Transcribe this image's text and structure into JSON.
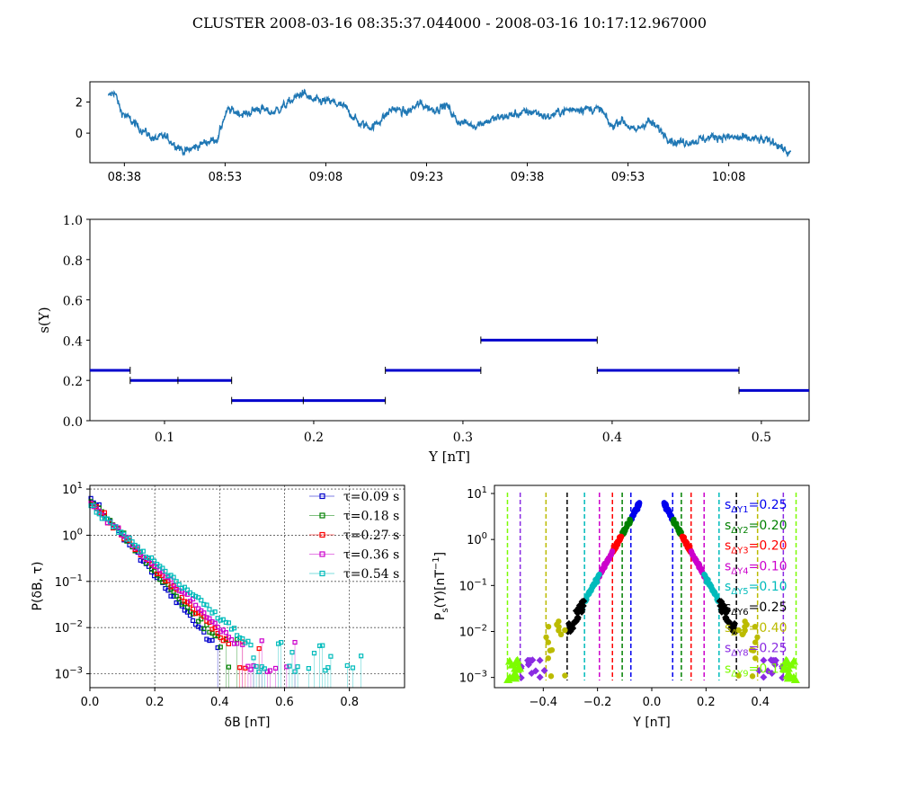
{
  "title": "CLUSTER  2008-03-16 08:35:37.044000 - 2008-03-16 10:17:12.967000",
  "chart_data": [
    {
      "type": "line",
      "panel": "timeseries",
      "x_ticks": [
        "08:38",
        "08:53",
        "09:08",
        "09:23",
        "09:38",
        "09:53",
        "10:08"
      ],
      "y_ticks": [
        "2",
        "0"
      ],
      "ylim": [
        -1.9,
        3.3
      ],
      "color": "#1f77b4",
      "keypoints": [
        {
          "t": "08:35:37",
          "v": 2.3
        },
        {
          "t": "08:36:30",
          "v": 2.7
        },
        {
          "t": "08:37:30",
          "v": 1.4
        },
        {
          "t": "08:39:30",
          "v": 0.6
        },
        {
          "t": "08:41:00",
          "v": 0.1
        },
        {
          "t": "08:42:30",
          "v": -0.4
        },
        {
          "t": "08:44:00",
          "v": -0.2
        },
        {
          "t": "08:45:30",
          "v": -0.7
        },
        {
          "t": "08:47:00",
          "v": -1.2
        },
        {
          "t": "08:48:30",
          "v": -0.9
        },
        {
          "t": "08:50:00",
          "v": -0.6
        },
        {
          "t": "08:52:00",
          "v": -0.3
        },
        {
          "t": "08:52:40",
          "v": 0.8
        },
        {
          "t": "08:53:30",
          "v": 1.5
        },
        {
          "t": "08:56:00",
          "v": 1.2
        },
        {
          "t": "08:58:00",
          "v": 1.6
        },
        {
          "t": "09:00:00",
          "v": 1.3
        },
        {
          "t": "09:02:00",
          "v": 1.8
        },
        {
          "t": "09:04:30",
          "v": 2.6
        },
        {
          "t": "09:06:00",
          "v": 2.1
        },
        {
          "t": "09:09:00",
          "v": 2.0
        },
        {
          "t": "09:11:00",
          "v": 1.6
        },
        {
          "t": "09:13:00",
          "v": 0.6
        },
        {
          "t": "09:15:00",
          "v": 0.4
        },
        {
          "t": "09:16:30",
          "v": 1.0
        },
        {
          "t": "09:18:00",
          "v": 1.6
        },
        {
          "t": "09:20:00",
          "v": 1.3
        },
        {
          "t": "09:22:00",
          "v": 1.9
        },
        {
          "t": "09:24:00",
          "v": 1.5
        },
        {
          "t": "09:26:00",
          "v": 1.8
        },
        {
          "t": "09:27:30",
          "v": 0.8
        },
        {
          "t": "09:30:00",
          "v": 0.5
        },
        {
          "t": "09:33:00",
          "v": 0.9
        },
        {
          "t": "09:36:00",
          "v": 1.2
        },
        {
          "t": "09:39:00",
          "v": 1.4
        },
        {
          "t": "09:41:00",
          "v": 1.0
        },
        {
          "t": "09:43:00",
          "v": 1.4
        },
        {
          "t": "09:46:00",
          "v": 1.6
        },
        {
          "t": "09:49:00",
          "v": 1.5
        },
        {
          "t": "09:50:30",
          "v": 0.4
        },
        {
          "t": "09:52:00",
          "v": 0.9
        },
        {
          "t": "09:54:00",
          "v": 0.1
        },
        {
          "t": "09:56:00",
          "v": 0.8
        },
        {
          "t": "09:58:00",
          "v": 0.1
        },
        {
          "t": "10:00:00",
          "v": -0.6
        },
        {
          "t": "10:03:00",
          "v": -0.5
        },
        {
          "t": "10:06:00",
          "v": -0.2
        },
        {
          "t": "10:09:00",
          "v": -0.3
        },
        {
          "t": "10:12:00",
          "v": -0.4
        },
        {
          "t": "10:15:00",
          "v": -0.6
        },
        {
          "t": "10:17:12",
          "v": -1.4
        }
      ]
    },
    {
      "type": "step",
      "panel": "scaling",
      "ylabel": "s(Y)",
      "xlabel": "Y [nT]",
      "xlim": [
        0.05,
        0.532
      ],
      "ylim": [
        0.0,
        1.0
      ],
      "x_ticks": [
        "0.1",
        "0.2",
        "0.3",
        "0.4",
        "0.5"
      ],
      "y_ticks": [
        "0.0",
        "0.2",
        "0.4",
        "0.6",
        "0.8",
        "1.0"
      ],
      "color": "#0000cc",
      "segments": [
        {
          "x0": 0.05,
          "x1": 0.077,
          "y": 0.25,
          "ticks": [
            0.077
          ]
        },
        {
          "x0": 0.077,
          "x1": 0.145,
          "y": 0.2,
          "ticks": [
            0.077,
            0.109,
            0.145
          ]
        },
        {
          "x0": 0.145,
          "x1": 0.248,
          "y": 0.1,
          "ticks": [
            0.145,
            0.193,
            0.248
          ]
        },
        {
          "x0": 0.248,
          "x1": 0.312,
          "y": 0.25,
          "ticks": [
            0.248,
            0.312
          ]
        },
        {
          "x0": 0.312,
          "x1": 0.39,
          "y": 0.4,
          "ticks": [
            0.312,
            0.39
          ]
        },
        {
          "x0": 0.39,
          "x1": 0.485,
          "y": 0.25,
          "ticks": [
            0.39,
            0.485
          ]
        },
        {
          "x0": 0.485,
          "x1": 0.532,
          "y": 0.15,
          "ticks": [
            0.485
          ]
        }
      ]
    },
    {
      "type": "scatter",
      "panel": "pdf",
      "ylabel": "P(δB, τ)",
      "xlabel": "δB [nT]",
      "log_y": true,
      "xlim": [
        0.0,
        0.97
      ],
      "ylim": [
        0.0005,
        12
      ],
      "x_ticks": [
        "0.0",
        "0.2",
        "0.4",
        "0.6",
        "0.8"
      ],
      "y_ticks": [
        {
          "base": "10",
          "exp": "1"
        },
        {
          "base": "10",
          "exp": "0"
        },
        {
          "base": "10",
          "exp": "−1"
        },
        {
          "base": "10",
          "exp": "−2"
        },
        {
          "base": "10",
          "exp": "−3"
        }
      ],
      "grid": true,
      "legend_position": "upper right",
      "series": [
        {
          "name": "τ=0.09 s",
          "color": "#0000cc",
          "p0": 6.5,
          "scale": 0.052,
          "xmax": 0.4
        },
        {
          "name": "τ=0.18 s",
          "color": "#008000",
          "p0": 6.0,
          "scale": 0.056,
          "xmax": 0.46
        },
        {
          "name": "τ=0.27 s",
          "color": "#ff0000",
          "p0": 5.5,
          "scale": 0.06,
          "xmax": 0.53
        },
        {
          "name": "τ=0.36 s",
          "color": "#cc00cc",
          "p0": 5.0,
          "scale": 0.064,
          "xmax": 0.67
        },
        {
          "name": "τ=0.54 s",
          "color": "#00bbbb",
          "p0": 4.2,
          "scale": 0.072,
          "xmax": 0.85
        }
      ]
    },
    {
      "type": "scatter",
      "panel": "rescaled",
      "ylabel": "P_s(Y)[nT^−1]",
      "xlabel": "Y [nT]",
      "log_y": true,
      "xlim": [
        -0.58,
        0.58
      ],
      "ylim": [
        0.0006,
        15
      ],
      "x_ticks": [
        "−0.4",
        "−0.2",
        "0.0",
        "0.2",
        "0.4"
      ],
      "y_ticks": [
        {
          "base": "10",
          "exp": "1"
        },
        {
          "base": "10",
          "exp": "0"
        },
        {
          "base": "10",
          "exp": "−1"
        },
        {
          "base": "10",
          "exp": "−2"
        },
        {
          "base": "10",
          "exp": "−3"
        }
      ],
      "thresholds": [
        0.077,
        0.109,
        0.145,
        0.193,
        0.248,
        0.312,
        0.39,
        0.485,
        0.532
      ],
      "legend": [
        {
          "sub": "ΔY1",
          "value": "=0.25",
          "color": "#0000ee"
        },
        {
          "sub": "ΔY2",
          "value": "=0.20",
          "color": "#008000"
        },
        {
          "sub": "ΔY3",
          "value": "=0.20",
          "color": "#ff0000"
        },
        {
          "sub": "ΔY4",
          "value": "=0.10",
          "color": "#cc00cc"
        },
        {
          "sub": "ΔY5",
          "value": "=0.10",
          "color": "#00bbbb"
        },
        {
          "sub": "ΔY6",
          "value": "=0.25",
          "color": "#000000"
        },
        {
          "sub": "ΔY7",
          "value": "=0.40",
          "color": "#bbbb00"
        },
        {
          "sub": "ΔY8",
          "value": "=0.25",
          "color": "#8a2be2"
        },
        {
          "sub": "ΔY9",
          "value": "=0.15",
          "color": "#7cfc00"
        }
      ]
    }
  ]
}
